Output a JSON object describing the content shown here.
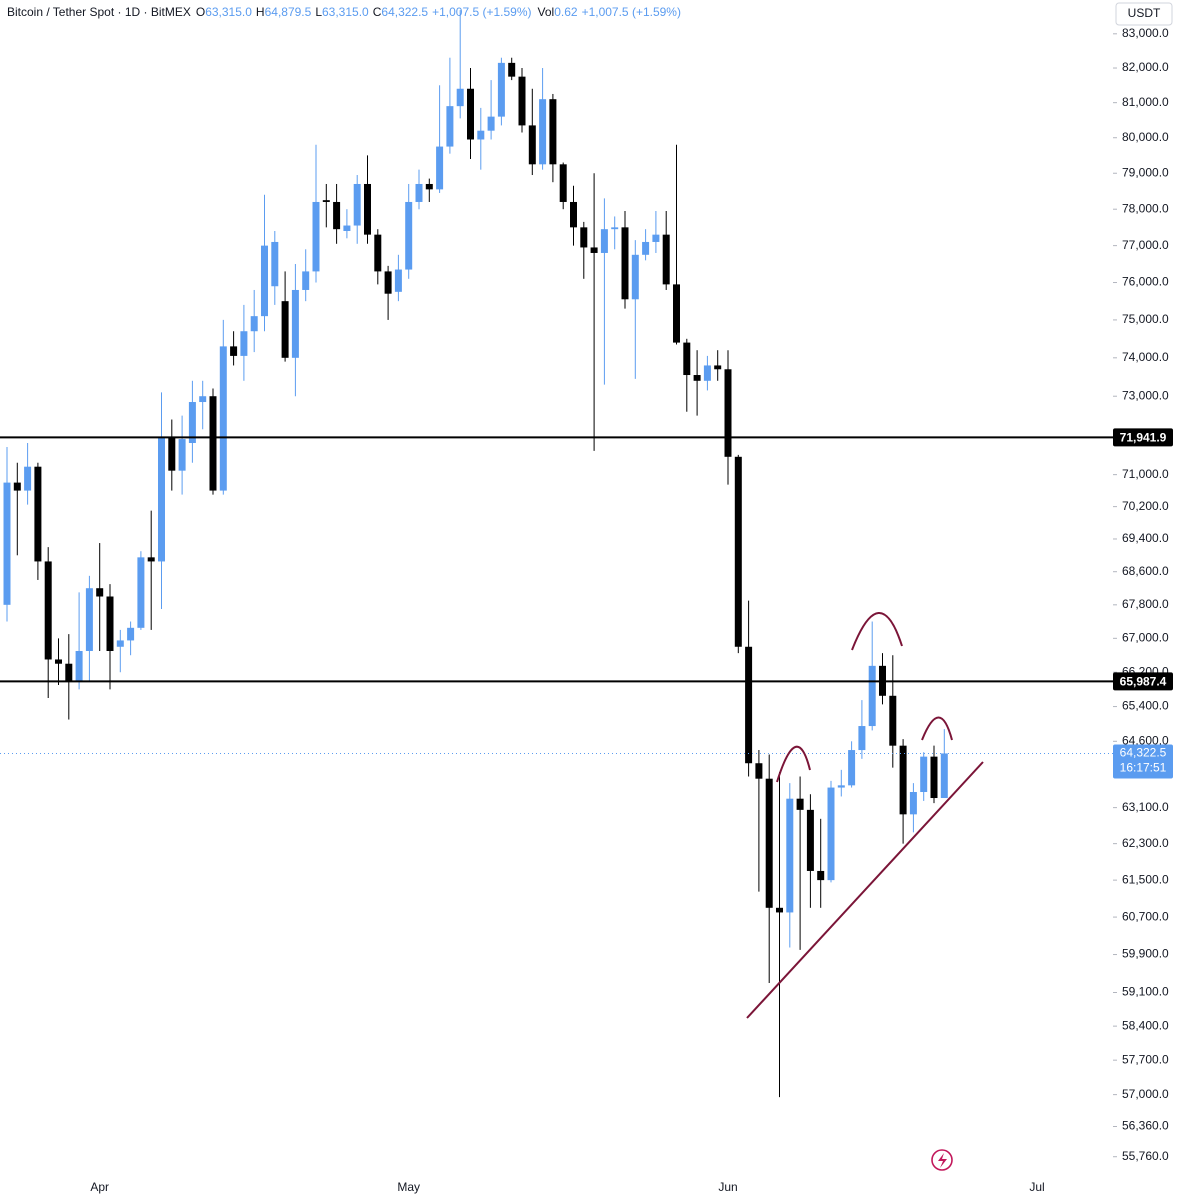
{
  "chart_data": {
    "type": "candlestick",
    "header": {
      "symbol": "Bitcoin / Tether Spot · 1D · BitMEX",
      "items": [
        {
          "key": "O",
          "value": "63,315.0"
        },
        {
          "key": "H",
          "value": "64,879.5"
        },
        {
          "key": "L",
          "value": "63,315.0"
        },
        {
          "key": "C",
          "value": "64,322.5"
        }
      ],
      "change": "+1,007.5 (+1.59%)",
      "volume_key": "Vol",
      "volume": "0.62",
      "volume_change": "+1,007.5 (+1.59%)"
    },
    "currency": "USDT",
    "up_color": "#5b9cf0",
    "down_color": "#000000",
    "yscale": "log",
    "ylim": [
      55400,
      84000
    ],
    "yticks": [
      {
        "value": 83000,
        "label": "83,000.0"
      },
      {
        "value": 82000,
        "label": "82,000.0"
      },
      {
        "value": 81000,
        "label": "81,000.0"
      },
      {
        "value": 80000,
        "label": "80,000.0"
      },
      {
        "value": 79000,
        "label": "79,000.0"
      },
      {
        "value": 78000,
        "label": "78,000.0"
      },
      {
        "value": 77000,
        "label": "77,000.0"
      },
      {
        "value": 76000,
        "label": "76,000.0"
      },
      {
        "value": 75000,
        "label": "75,000.0"
      },
      {
        "value": 74000,
        "label": "74,000.0"
      },
      {
        "value": 73000,
        "label": "73,000.0"
      },
      {
        "value": 71000,
        "label": "71,000.0"
      },
      {
        "value": 70200,
        "label": "70,200.0"
      },
      {
        "value": 69400,
        "label": "69,400.0"
      },
      {
        "value": 68600,
        "label": "68,600.0"
      },
      {
        "value": 67800,
        "label": "67,800.0"
      },
      {
        "value": 67000,
        "label": "67,000.0"
      },
      {
        "value": 66200,
        "label": "66,200.0"
      },
      {
        "value": 65400,
        "label": "65,400.0"
      },
      {
        "value": 64600,
        "label": "64,600.0"
      },
      {
        "value": 63100,
        "label": "63,100.0"
      },
      {
        "value": 62300,
        "label": "62,300.0"
      },
      {
        "value": 61500,
        "label": "61,500.0"
      },
      {
        "value": 60700,
        "label": "60,700.0"
      },
      {
        "value": 59900,
        "label": "59,900.0"
      },
      {
        "value": 59100,
        "label": "59,100.0"
      },
      {
        "value": 58400,
        "label": "58,400.0"
      },
      {
        "value": 57700,
        "label": "57,700.0"
      },
      {
        "value": 57000,
        "label": "57,000.0"
      },
      {
        "value": 56360,
        "label": "56,360.0"
      },
      {
        "value": 55760,
        "label": "55,760.0"
      }
    ],
    "hlines": [
      {
        "value": 71941.9,
        "label": "71,941.9"
      },
      {
        "value": 65987.4,
        "label": "65,987.4"
      }
    ],
    "last_price": {
      "value": 64322.5,
      "label": "64,322.5",
      "countdown": "16:17:51"
    },
    "categories": [
      null,
      null,
      null,
      null,
      null,
      null,
      null,
      null,
      null,
      "Apr",
      null,
      null,
      null,
      null,
      null,
      null,
      null,
      null,
      null,
      null,
      null,
      null,
      null,
      null,
      null,
      null,
      null,
      null,
      null,
      null,
      null,
      null,
      null,
      null,
      null,
      null,
      null,
      null,
      null,
      "May",
      null,
      null,
      null,
      null,
      null,
      null,
      null,
      null,
      null,
      null,
      null,
      null,
      null,
      null,
      null,
      null,
      null,
      null,
      null,
      null,
      null,
      null,
      null,
      null,
      null,
      null,
      null,
      null,
      null,
      null,
      "Jun",
      null,
      null,
      null,
      null,
      null,
      null,
      null,
      null,
      null,
      null,
      null,
      null,
      null,
      null,
      null,
      null,
      null,
      null,
      null,
      null,
      null,
      null,
      null,
      null,
      null,
      null,
      null,
      null,
      null,
      "Jul"
    ],
    "open": [
      67800,
      70800,
      70600,
      71200,
      68850,
      66500,
      66400,
      66000,
      66700,
      68200,
      68000,
      66800,
      66950,
      67250,
      68950,
      68850,
      71950,
      71100,
      71800,
      72850,
      73000,
      70600,
      74300,
      74050,
      74700,
      75100,
      75900,
      75500,
      74000,
      75800,
      76300,
      78250,
      78200,
      77400,
      77550,
      78700,
      77300,
      76300,
      75750,
      76350,
      78200,
      78700,
      78550,
      79750,
      80900,
      81400,
      79950,
      80200,
      80600,
      82150,
      81750,
      80350,
      79250,
      81100,
      79250,
      78200,
      77500,
      76950,
      76800,
      77450,
      77500,
      75550,
      76750,
      77100,
      77300,
      75950,
      74400,
      73550,
      73400,
      73800,
      73700,
      71450,
      66800,
      64100,
      63750,
      60900,
      60800,
      63300,
      63050,
      61700,
      61500,
      63550,
      63600,
      64400,
      64950,
      66350,
      65650,
      64500,
      62950,
      63450,
      64250,
      63315,
      null,
      null,
      null,
      null,
      null,
      null,
      null,
      null,
      null
    ],
    "high": [
      71700,
      71300,
      71800,
      71300,
      69200,
      67000,
      67100,
      68100,
      68500,
      69300,
      68300,
      67200,
      67400,
      69100,
      70100,
      73100,
      72400,
      72500,
      73400,
      73400,
      73200,
      75000,
      74700,
      75400,
      75800,
      78400,
      77400,
      76300,
      76500,
      76900,
      79800,
      78700,
      78700,
      78000,
      78950,
      79500,
      77450,
      76450,
      76750,
      78700,
      79100,
      78850,
      81500,
      82300,
      83700,
      82000,
      80850,
      81650,
      82300,
      82300,
      82000,
      81400,
      82000,
      81250,
      79300,
      78650,
      77650,
      79000,
      78300,
      77800,
      77950,
      77150,
      77450,
      77950,
      77950,
      79800,
      74500,
      74200,
      74050,
      74200,
      74200,
      71500,
      67900,
      64400,
      64300,
      63900,
      63650,
      63800,
      63400,
      62850,
      63700,
      63950,
      64600,
      65550,
      67400,
      66650,
      66600,
      64650,
      63650,
      64350,
      64500,
      64879.5,
      null,
      null,
      null,
      null,
      null,
      null,
      null,
      null,
      null
    ],
    "low": [
      67400,
      69000,
      70250,
      68400,
      65600,
      65900,
      65100,
      65800,
      66000,
      66700,
      65800,
      66200,
      66600,
      67200,
      67200,
      67700,
      70600,
      70500,
      71300,
      72150,
      70500,
      70500,
      73800,
      73400,
      74150,
      74700,
      75400,
      73900,
      73000,
      75500,
      76000,
      77500,
      77050,
      77200,
      77050,
      77050,
      75950,
      75000,
      75500,
      76100,
      78000,
      78200,
      78450,
      79550,
      80550,
      79400,
      79100,
      79950,
      80350,
      81650,
      80150,
      78950,
      79100,
      78750,
      78000,
      77000,
      76100,
      71600,
      73300,
      76900,
      75300,
      73450,
      76600,
      76800,
      75800,
      74350,
      72600,
      72500,
      73150,
      73400,
      70750,
      66650,
      63800,
      61250,
      59300,
      56950,
      60050,
      60000,
      60900,
      60900,
      61450,
      63350,
      63550,
      64200,
      64850,
      65450,
      64000,
      62300,
      62550,
      63250,
      63200,
      63315,
      null,
      null,
      null,
      null,
      null,
      null,
      null,
      null,
      null
    ],
    "close": [
      70800,
      70600,
      71200,
      68850,
      66500,
      66400,
      66000,
      66700,
      68200,
      68000,
      66700,
      66950,
      67250,
      68950,
      68850,
      71950,
      71100,
      71900,
      72850,
      73000,
      70600,
      74300,
      74050,
      74700,
      75100,
      77000,
      77100,
      74000,
      75800,
      76300,
      78200,
      78200,
      77450,
      77550,
      78700,
      77300,
      76300,
      75700,
      76350,
      78200,
      78700,
      78550,
      79750,
      80900,
      81400,
      79950,
      80200,
      80600,
      82150,
      81750,
      80350,
      79250,
      81100,
      79250,
      78200,
      77500,
      76950,
      76800,
      77450,
      77500,
      75550,
      76750,
      77100,
      77300,
      75950,
      74400,
      73550,
      73400,
      73800,
      73700,
      71450,
      66800,
      64100,
      63750,
      60900,
      60800,
      63300,
      63050,
      61700,
      61500,
      63550,
      63600,
      64400,
      64950,
      66350,
      65650,
      64500,
      62950,
      63450,
      64250,
      63315,
      64322.5,
      null,
      null,
      null,
      null,
      null,
      null,
      null,
      null,
      null
    ]
  }
}
